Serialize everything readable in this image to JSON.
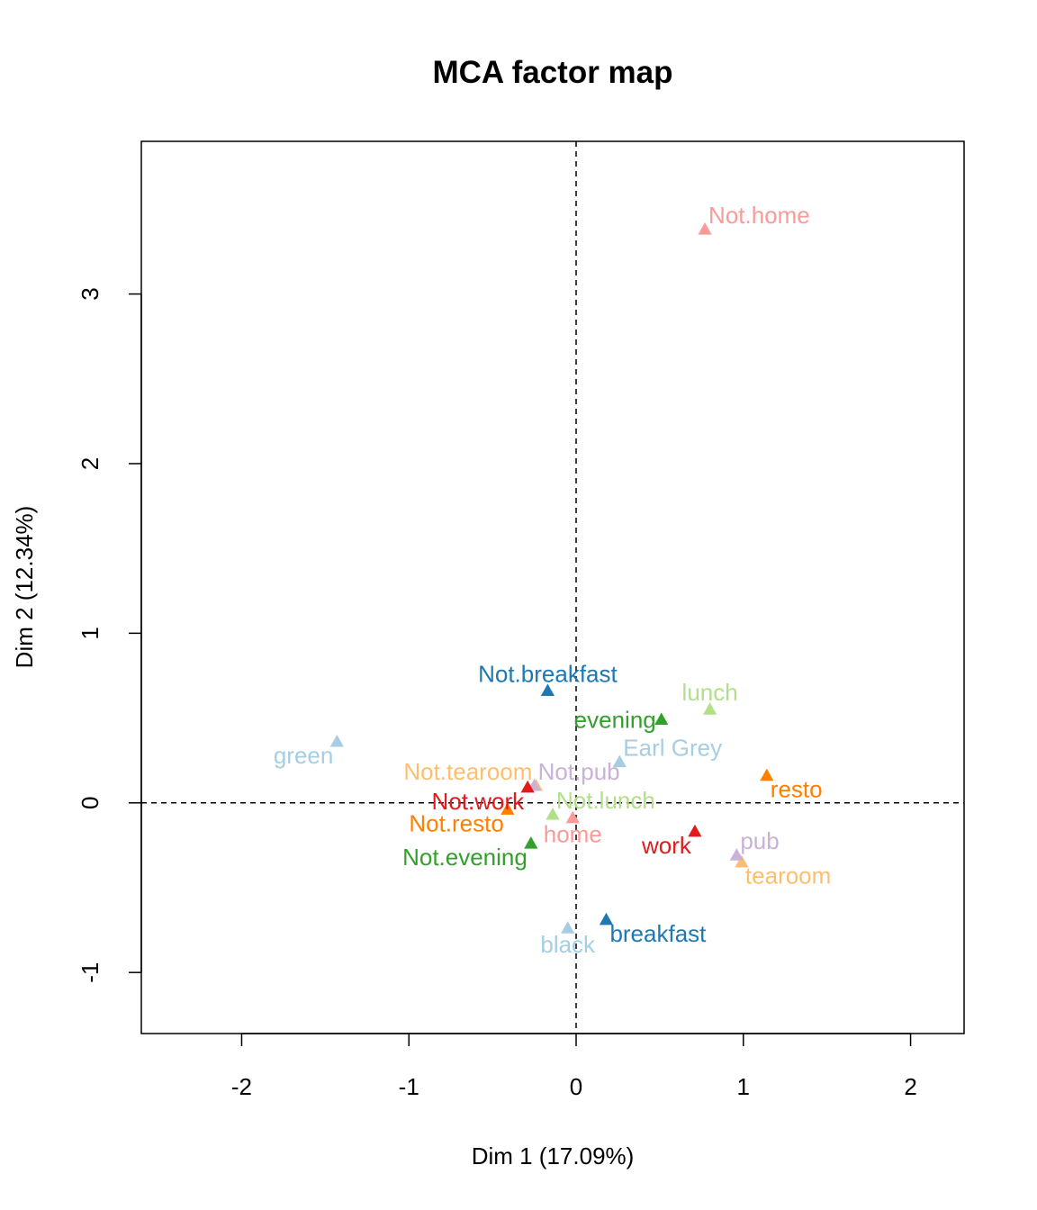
{
  "chart_data": {
    "type": "scatter",
    "title": "MCA factor map",
    "xlabel": "Dim 1 (17.09%)",
    "ylabel": "Dim 2 (12.34%)",
    "xlim": [
      -2.6,
      2.32
    ],
    "ylim": [
      -1.36,
      3.9
    ],
    "xticks": [
      -2,
      -1,
      0,
      1,
      2
    ],
    "yticks": [
      -1,
      0,
      1,
      2,
      3
    ],
    "grid": false,
    "reference_lines": {
      "x": 0,
      "y": 0,
      "style": "dashed"
    },
    "marker": "triangle",
    "points": [
      {
        "label": "breakfast",
        "x": 0.18,
        "y": -0.69,
        "color": "#1F78B4",
        "pos": "br"
      },
      {
        "label": "Not.breakfast",
        "x": -0.17,
        "y": 0.66,
        "color": "#1F78B4",
        "pos": "t"
      },
      {
        "label": "Not.tearoom",
        "x": -0.24,
        "y": 0.1,
        "color": "#FDBF6F",
        "pos": "tl"
      },
      {
        "label": "tearoom",
        "x": 0.99,
        "y": -0.35,
        "color": "#FDBF6F",
        "pos": "br"
      },
      {
        "label": "evening",
        "x": 0.51,
        "y": 0.49,
        "color": "#33A02C",
        "pos": "l"
      },
      {
        "label": "Not.evening",
        "x": -0.27,
        "y": -0.24,
        "color": "#33A02C",
        "pos": "bl"
      },
      {
        "label": "lunch",
        "x": 0.8,
        "y": 0.55,
        "color": "#B2DF8A",
        "pos": "t"
      },
      {
        "label": "Not.lunch",
        "x": -0.14,
        "y": -0.07,
        "color": "#B2DF8A",
        "pos": "tr"
      },
      {
        "label": "Not.pub",
        "x": -0.25,
        "y": 0.1,
        "color": "#CAB2D6",
        "pos": "tr"
      },
      {
        "label": "pub",
        "x": 0.96,
        "y": -0.31,
        "color": "#CAB2D6",
        "pos": "tr"
      },
      {
        "label": "Not.resto",
        "x": -0.41,
        "y": -0.04,
        "color": "#FF7F00",
        "pos": "bl"
      },
      {
        "label": "resto",
        "x": 1.14,
        "y": 0.16,
        "color": "#FF7F00",
        "pos": "br"
      },
      {
        "label": "Not.work",
        "x": -0.29,
        "y": 0.09,
        "color": "#E31A1C",
        "pos": "bl"
      },
      {
        "label": "work",
        "x": 0.71,
        "y": -0.17,
        "color": "#E31A1C",
        "pos": "bl"
      },
      {
        "label": "home",
        "x": -0.02,
        "y": -0.09,
        "color": "#FB9A99",
        "pos": "b"
      },
      {
        "label": "Not.home",
        "x": 0.77,
        "y": 3.38,
        "color": "#FB9A99",
        "pos": "tr"
      },
      {
        "label": "black",
        "x": -0.05,
        "y": -0.74,
        "color": "#A6CEE3",
        "pos": "b"
      },
      {
        "label": "Earl Grey",
        "x": 0.26,
        "y": 0.24,
        "color": "#A6CEE3",
        "pos": "tr"
      },
      {
        "label": "green",
        "x": -1.43,
        "y": 0.36,
        "color": "#A6CEE3",
        "pos": "bl"
      }
    ]
  }
}
